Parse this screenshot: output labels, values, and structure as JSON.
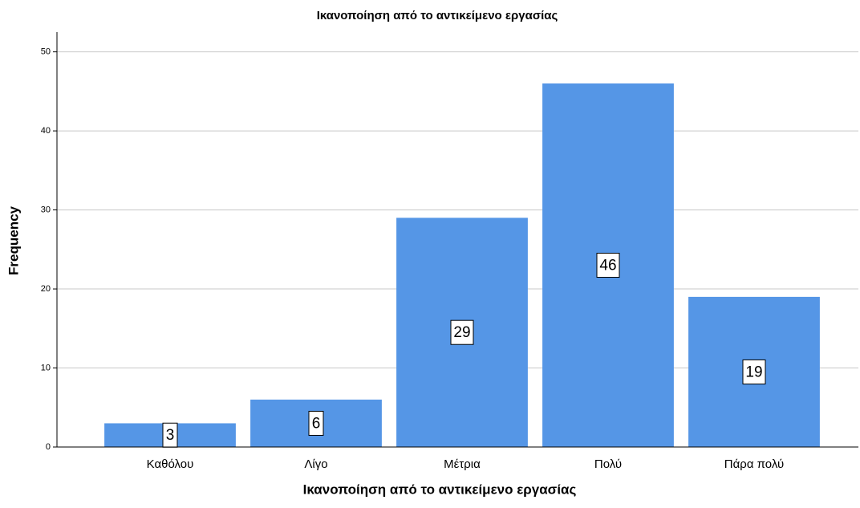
{
  "chart_data": {
    "type": "bar",
    "title": "Ικανοποίηση από το αντικείμενο εργασίας",
    "x_label": "Ικανοποίηση από το αντικείμενο εργασίας",
    "y_label": "Frequency",
    "categories": [
      "Καθόλου",
      "Λίγο",
      "Μέτρια",
      "Πολύ",
      "Πάρα πολύ"
    ],
    "values": [
      3,
      6,
      29,
      46,
      19
    ],
    "color": "#5596e6",
    "ylim": [
      0,
      52.5
    ],
    "yticks": [
      0,
      10,
      20,
      30,
      40,
      50
    ],
    "grid": true
  }
}
